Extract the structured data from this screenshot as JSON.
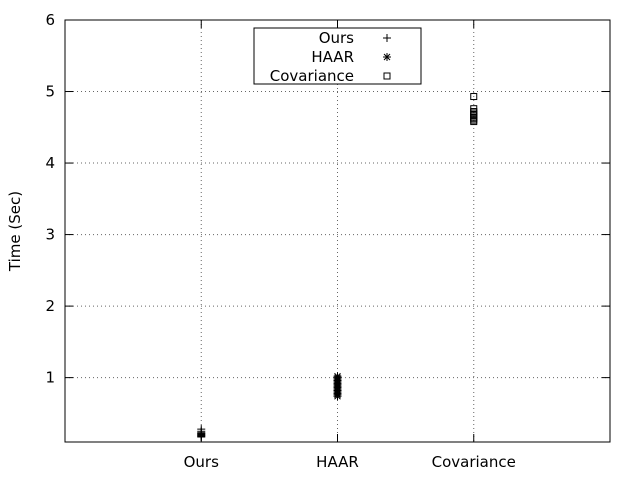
{
  "chart_data": {
    "type": "scatter",
    "title": "",
    "xlabel": "",
    "ylabel": "Time (Sec)",
    "categories": [
      "Ours",
      "HAAR",
      "Covariance"
    ],
    "ylim": [
      0.1,
      6
    ],
    "yticks": [
      1,
      2,
      3,
      4,
      5,
      6
    ],
    "grid": true,
    "legend_position": "top-center",
    "series": [
      {
        "name": "Ours",
        "marker": "plus",
        "category": "Ours",
        "values": [
          0.17,
          0.18,
          0.19,
          0.2,
          0.21,
          0.22,
          0.23,
          0.25,
          0.28
        ]
      },
      {
        "name": "HAAR",
        "marker": "star",
        "category": "HAAR",
        "values": [
          0.74,
          0.76,
          0.78,
          0.8,
          0.82,
          0.84,
          0.86,
          0.88,
          0.9,
          0.92,
          0.94,
          0.96,
          0.98,
          1.0,
          1.02
        ]
      },
      {
        "name": "Covariance",
        "marker": "square",
        "category": "Covariance",
        "values": [
          4.58,
          4.6,
          4.62,
          4.64,
          4.66,
          4.68,
          4.7,
          4.72,
          4.76,
          4.93
        ]
      }
    ]
  }
}
